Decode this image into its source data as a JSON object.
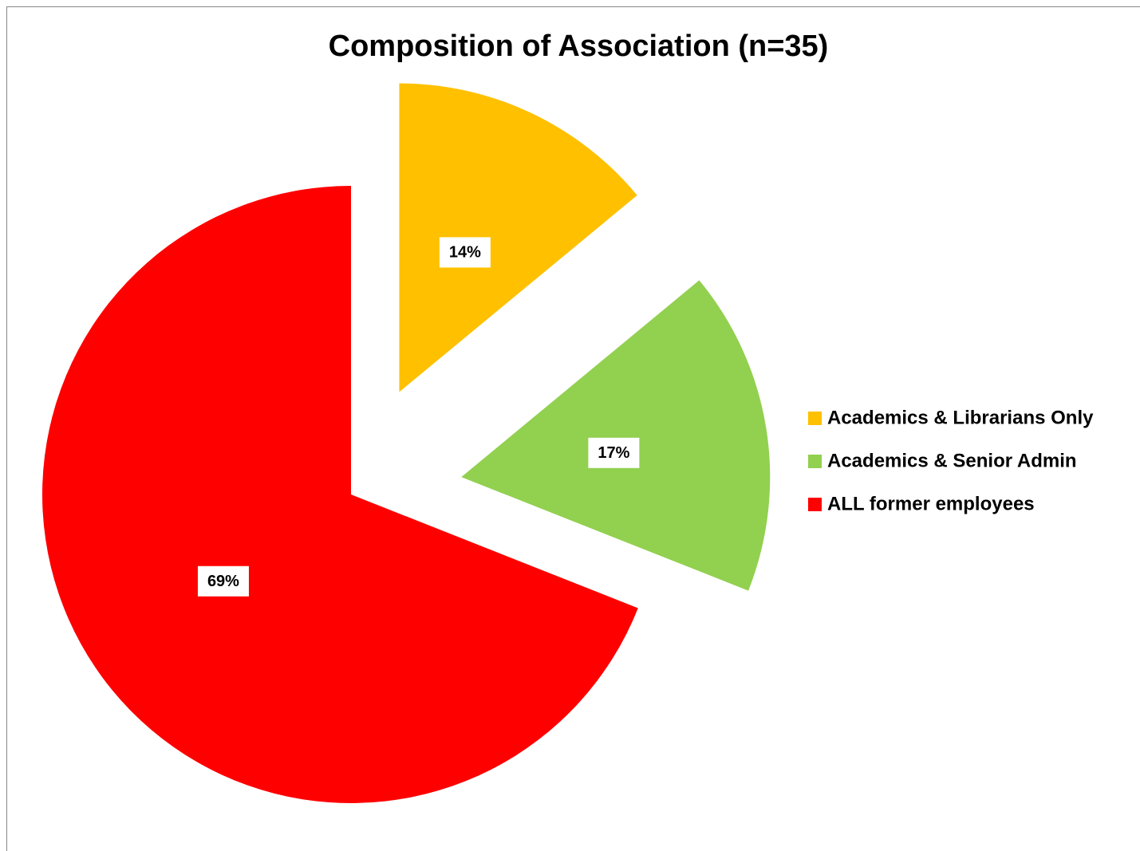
{
  "chart_data": {
    "type": "pie",
    "title": "Composition of Association (n=35)",
    "categories": [
      "Academics & Librarians Only",
      "Academics & Senior Admin",
      "ALL former employees"
    ],
    "values": [
      14,
      17,
      69
    ],
    "value_labels": [
      "14%",
      "17%",
      "69%"
    ],
    "colors": [
      "#FFC000",
      "#92D050",
      "#FF0000"
    ],
    "legend": "right"
  }
}
